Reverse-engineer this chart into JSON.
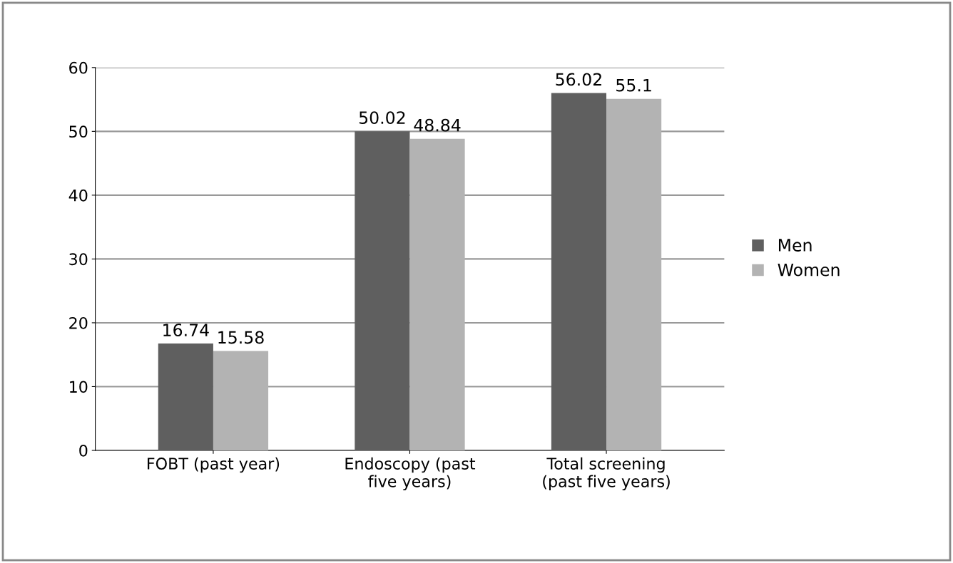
{
  "chart_data": {
    "type": "bar",
    "categories": [
      "FOBT (past year)",
      "Endoscopy (past\nfive years)",
      "Total screening\n(past five years)"
    ],
    "series": [
      {
        "name": "Men",
        "color": "#5f5f5f",
        "values": [
          16.74,
          50.02,
          56.02
        ]
      },
      {
        "name": "Women",
        "color": "#b3b3b3",
        "values": [
          15.58,
          48.84,
          55.1
        ]
      }
    ],
    "ylim": [
      0,
      60
    ],
    "yticks": [
      0,
      10,
      20,
      30,
      40,
      50,
      60
    ],
    "grid": "y",
    "legend": "right",
    "data_labels": true
  }
}
